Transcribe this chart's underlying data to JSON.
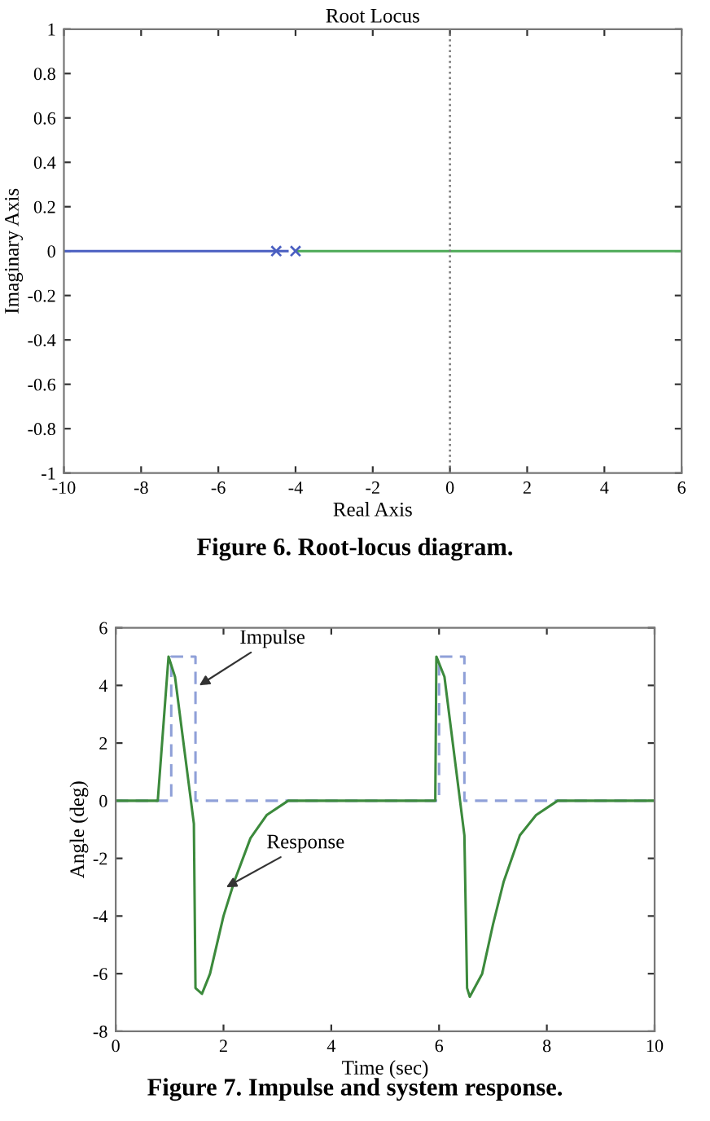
{
  "chart_data": [
    {
      "type": "line",
      "title": "Root Locus",
      "xlabel": "Real Axis",
      "ylabel": "Imaginary Axis",
      "series": [
        {
          "color": "#4a5fc1",
          "x": [
            -10,
            -4.5
          ],
          "values": [
            0,
            0
          ],
          "line_style": "solid",
          "marker": "none"
        },
        {
          "color": "#4a5fc1",
          "x": [
            -4.5,
            -4
          ],
          "values": [
            0,
            0
          ],
          "line_style": "dashed",
          "marker": "none"
        },
        {
          "color": "#4daa57",
          "x": [
            -4,
            6
          ],
          "values": [
            0,
            0
          ],
          "line_style": "solid",
          "marker": "none"
        },
        {
          "type": "scatter",
          "color": "#4a5fc1",
          "x": [
            -4.5,
            -4
          ],
          "values": [
            0,
            0
          ],
          "marker": "cross"
        }
      ],
      "xlim": [
        -10,
        6
      ],
      "xticks": [
        -10,
        -8,
        -6,
        -4,
        -2,
        0,
        2,
        4,
        6
      ],
      "ylim": [
        -1,
        1
      ],
      "yticks": [
        -1,
        -0.8,
        -0.6,
        -0.4,
        -0.2,
        0,
        0.2,
        0.4,
        0.6,
        0.8,
        1
      ],
      "ref_lines": [
        {
          "axis": "x",
          "value": 0,
          "color": "#777777",
          "line_style": "dotted"
        }
      ],
      "grid": false,
      "legend": false,
      "annotations": [
        "Figure 6. Root-locus diagram."
      ]
    },
    {
      "type": "line",
      "xlabel": "Time (sec)",
      "ylabel": "Angle (deg)",
      "series": [
        {
          "color": "#8fa0d8",
          "line_style": "dashed",
          "marker": "none",
          "x": [
            0,
            1.03,
            1.03,
            1.48,
            1.48,
            6.0,
            6.0,
            6.47,
            6.47,
            10
          ],
          "values": [
            0,
            0,
            5,
            5,
            0,
            0,
            5,
            5,
            0,
            0
          ]
        },
        {
          "color": "#3c8a3c",
          "line_style": "solid",
          "marker": "none",
          "x": [
            0,
            0.78,
            0.98,
            1.1,
            1.45,
            1.48,
            1.6,
            1.75,
            2.0,
            2.2,
            2.5,
            2.8,
            3.2,
            5.93,
            5.95,
            6.1,
            6.47,
            6.52,
            6.57,
            6.8,
            7.0,
            7.2,
            7.5,
            7.8,
            8.2,
            10
          ],
          "values": [
            0,
            0,
            5.0,
            4.3,
            -0.8,
            -6.5,
            -6.7,
            -6.0,
            -4.0,
            -2.8,
            -1.3,
            -0.5,
            0,
            0,
            5.0,
            4.3,
            -1.2,
            -6.5,
            -6.8,
            -6.0,
            -4.3,
            -2.8,
            -1.2,
            -0.5,
            0,
            0
          ]
        }
      ],
      "xlim": [
        0,
        10
      ],
      "xticks": [
        0,
        2,
        4,
        6,
        8,
        10
      ],
      "ylim": [
        -8,
        6
      ],
      "yticks": [
        -8,
        -6,
        -4,
        -2,
        0,
        2,
        4,
        6
      ],
      "grid": false,
      "legend": false,
      "annotations": [
        {
          "text": "Impulse",
          "x": 1.55,
          "y": 4.0
        },
        {
          "text": "Response",
          "x": 2.05,
          "y": -3.0
        },
        "Figure 7. Impulse and system response."
      ]
    }
  ]
}
